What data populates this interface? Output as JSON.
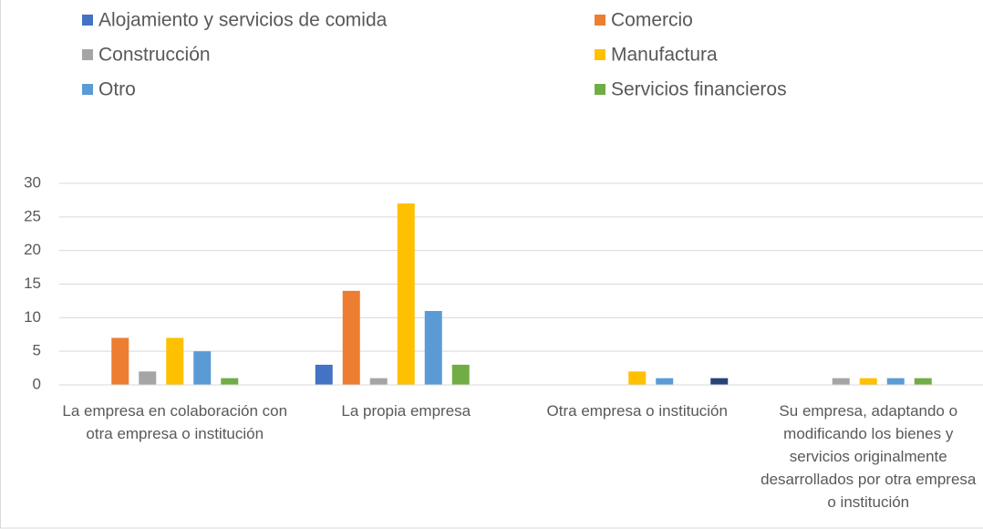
{
  "chart_data": {
    "type": "bar",
    "categories": [
      "La empresa en colaboración con otra empresa o institución",
      "La propia empresa",
      "Otra empresa o institución",
      "Su empresa, adaptando o modificando los bienes y servicios originalmente desarrollados por otra empresa o institución"
    ],
    "series": [
      {
        "name": "Alojamiento y servicios de comida",
        "color": "#4472c4",
        "values": [
          0,
          3,
          0,
          0
        ]
      },
      {
        "name": "Comercio",
        "color": "#ed7d31",
        "values": [
          7,
          14,
          0,
          0
        ]
      },
      {
        "name": "Construcción",
        "color": "#a5a5a5",
        "values": [
          2,
          1,
          0,
          1
        ]
      },
      {
        "name": "Manufactura",
        "color": "#ffc000",
        "values": [
          7,
          27,
          2,
          1
        ]
      },
      {
        "name": "Otro",
        "color": "#5b9bd5",
        "values": [
          5,
          11,
          1,
          1
        ]
      },
      {
        "name": "Servicios financieros",
        "color": "#70ad47",
        "values": [
          1,
          3,
          0,
          1
        ]
      },
      {
        "color": "#264478",
        "values": [
          0,
          0,
          1,
          0
        ]
      }
    ],
    "ylim": [
      0,
      30
    ],
    "yticks": [
      0,
      5,
      10,
      15,
      20,
      25,
      30
    ],
    "grid": true
  }
}
